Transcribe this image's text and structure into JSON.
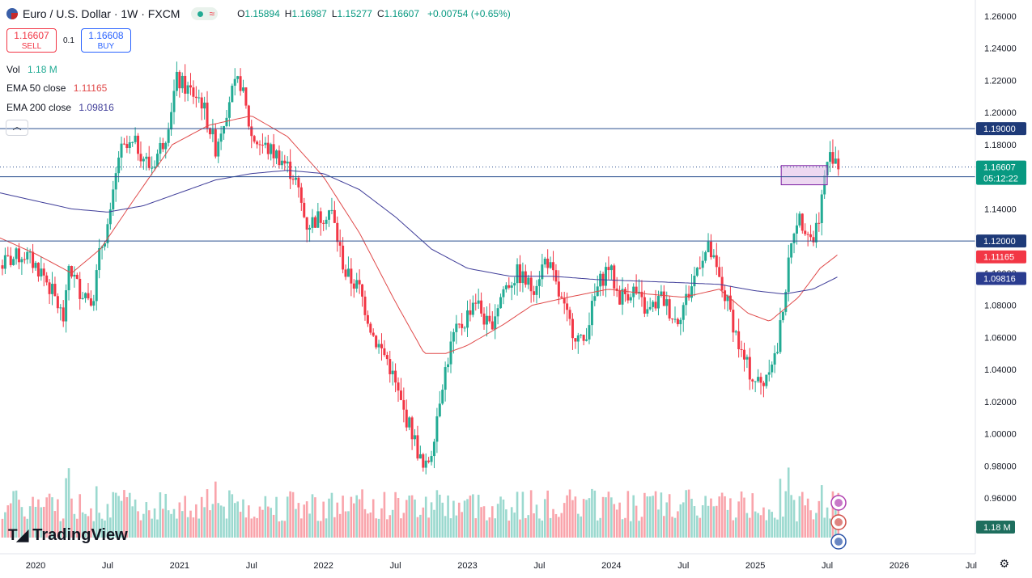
{
  "header": {
    "title": "Euro / U.S. Dollar · 1W · FXCM",
    "ohlc": [
      {
        "key": "O",
        "value": "1.15894"
      },
      {
        "key": "H",
        "value": "1.16987"
      },
      {
        "key": "L",
        "value": "1.15277"
      },
      {
        "key": "C",
        "value": "1.16607"
      },
      {
        "key": "",
        "value": "+0.00754 (+0.65%)"
      }
    ]
  },
  "trade": {
    "sell_price": "1.16607",
    "sell_label": "SELL",
    "spread": "0.1",
    "buy_price": "1.16608",
    "buy_label": "BUY"
  },
  "indicators": {
    "vol_label": "Vol",
    "vol_value": "1.18 M",
    "ema50_label": "EMA 50 close",
    "ema50_value": "1.11165",
    "ema200_label": "EMA 200 close",
    "ema200_value": "1.09816"
  },
  "logo": "TradingView",
  "colors": {
    "up": "#22ab94",
    "down": "#f23645",
    "ema50": "#e04a4a",
    "ema200": "#3f3d99",
    "hline": "#2a4f8f",
    "box_fill": "#e1bee7",
    "box_stroke": "#7b1fa2"
  },
  "chart_data": {
    "type": "candlestick",
    "symbol": "EUR/USD",
    "timeframe": "1W",
    "ylim": [
      0.945,
      1.265
    ],
    "y_ticks": [
      "1.26000",
      "1.24000",
      "1.22000",
      "1.20000",
      "1.18000",
      "1.16000",
      "1.14000",
      "1.12000",
      "1.10000",
      "1.08000",
      "1.06000",
      "1.04000",
      "1.02000",
      "1.00000",
      "0.98000",
      "0.96000"
    ],
    "x_ticks": [
      {
        "label": "2020",
        "t": 2020.0
      },
      {
        "label": "Jul",
        "t": 2020.5
      },
      {
        "label": "2021",
        "t": 2021.0
      },
      {
        "label": "Jul",
        "t": 2021.5
      },
      {
        "label": "2022",
        "t": 2022.0
      },
      {
        "label": "Jul",
        "t": 2022.5
      },
      {
        "label": "2023",
        "t": 2023.0
      },
      {
        "label": "Jul",
        "t": 2023.5
      },
      {
        "label": "2024",
        "t": 2024.0
      },
      {
        "label": "Jul",
        "t": 2024.5
      },
      {
        "label": "2025",
        "t": 2025.0
      },
      {
        "label": "Jul",
        "t": 2025.5
      },
      {
        "label": "2026",
        "t": 2026.0
      },
      {
        "label": "Jul",
        "t": 2026.5
      }
    ],
    "t_range": [
      2019.75,
      2026.88
    ],
    "price_path": [
      [
        2019.75,
        1.105
      ],
      [
        2019.92,
        1.112
      ],
      [
        2020.05,
        1.1
      ],
      [
        2020.13,
        1.085
      ],
      [
        2020.2,
        1.07
      ],
      [
        2020.23,
        1.105
      ],
      [
        2020.3,
        1.09
      ],
      [
        2020.4,
        1.085
      ],
      [
        2020.45,
        1.115
      ],
      [
        2020.52,
        1.135
      ],
      [
        2020.58,
        1.175
      ],
      [
        2020.7,
        1.18
      ],
      [
        2020.8,
        1.165
      ],
      [
        2020.9,
        1.185
      ],
      [
        2020.98,
        1.22
      ],
      [
        2021.05,
        1.215
      ],
      [
        2021.15,
        1.208
      ],
      [
        2021.25,
        1.178
      ],
      [
        2021.35,
        1.21
      ],
      [
        2021.42,
        1.22
      ],
      [
        2021.5,
        1.185
      ],
      [
        2021.6,
        1.178
      ],
      [
        2021.7,
        1.172
      ],
      [
        2021.8,
        1.16
      ],
      [
        2021.88,
        1.13
      ],
      [
        2021.98,
        1.135
      ],
      [
        2022.05,
        1.14
      ],
      [
        2022.15,
        1.1
      ],
      [
        2022.25,
        1.09
      ],
      [
        2022.35,
        1.06
      ],
      [
        2022.45,
        1.045
      ],
      [
        2022.55,
        1.015
      ],
      [
        2022.62,
        1.0
      ],
      [
        2022.7,
        0.975
      ],
      [
        2022.75,
        0.99
      ],
      [
        2022.82,
        1.03
      ],
      [
        2022.9,
        1.06
      ],
      [
        2022.98,
        1.07
      ],
      [
        2023.05,
        1.085
      ],
      [
        2023.15,
        1.065
      ],
      [
        2023.25,
        1.09
      ],
      [
        2023.35,
        1.1
      ],
      [
        2023.45,
        1.09
      ],
      [
        2023.55,
        1.11
      ],
      [
        2023.62,
        1.09
      ],
      [
        2023.7,
        1.07
      ],
      [
        2023.8,
        1.055
      ],
      [
        2023.9,
        1.09
      ],
      [
        2023.98,
        1.105
      ],
      [
        2024.05,
        1.085
      ],
      [
        2024.15,
        1.09
      ],
      [
        2024.25,
        1.075
      ],
      [
        2024.35,
        1.085
      ],
      [
        2024.45,
        1.07
      ],
      [
        2024.55,
        1.09
      ],
      [
        2024.62,
        1.11
      ],
      [
        2024.68,
        1.115
      ],
      [
        2024.75,
        1.095
      ],
      [
        2024.82,
        1.078
      ],
      [
        2024.9,
        1.05
      ],
      [
        2024.98,
        1.035
      ],
      [
        2025.05,
        1.03
      ],
      [
        2025.1,
        1.045
      ],
      [
        2025.15,
        1.05
      ],
      [
        2025.2,
        1.085
      ],
      [
        2025.28,
        1.135
      ],
      [
        2025.35,
        1.13
      ],
      [
        2025.4,
        1.12
      ],
      [
        2025.45,
        1.14
      ],
      [
        2025.5,
        1.17
      ],
      [
        2025.55,
        1.175
      ],
      [
        2025.58,
        1.166
      ]
    ],
    "ema50_path": [
      [
        2019.75,
        1.122
      ],
      [
        2020.0,
        1.112
      ],
      [
        2020.25,
        1.1
      ],
      [
        2020.45,
        1.115
      ],
      [
        2020.7,
        1.148
      ],
      [
        2020.95,
        1.18
      ],
      [
        2021.2,
        1.192
      ],
      [
        2021.5,
        1.198
      ],
      [
        2021.75,
        1.185
      ],
      [
        2022.0,
        1.16
      ],
      [
        2022.25,
        1.125
      ],
      [
        2022.5,
        1.082
      ],
      [
        2022.7,
        1.05
      ],
      [
        2022.85,
        1.05
      ],
      [
        2023.0,
        1.055
      ],
      [
        2023.25,
        1.068
      ],
      [
        2023.45,
        1.08
      ],
      [
        2023.7,
        1.085
      ],
      [
        2023.98,
        1.09
      ],
      [
        2024.25,
        1.087
      ],
      [
        2024.5,
        1.085
      ],
      [
        2024.75,
        1.09
      ],
      [
        2024.95,
        1.075
      ],
      [
        2025.1,
        1.07
      ],
      [
        2025.3,
        1.085
      ],
      [
        2025.45,
        1.103
      ],
      [
        2025.58,
        1.112
      ]
    ],
    "ema200_path": [
      [
        2019.75,
        1.15
      ],
      [
        2020.0,
        1.145
      ],
      [
        2020.25,
        1.14
      ],
      [
        2020.5,
        1.138
      ],
      [
        2020.75,
        1.142
      ],
      [
        2021.0,
        1.15
      ],
      [
        2021.25,
        1.158
      ],
      [
        2021.5,
        1.162
      ],
      [
        2021.75,
        1.164
      ],
      [
        2022.0,
        1.162
      ],
      [
        2022.25,
        1.152
      ],
      [
        2022.5,
        1.135
      ],
      [
        2022.75,
        1.115
      ],
      [
        2023.0,
        1.103
      ],
      [
        2023.3,
        1.098
      ],
      [
        2023.6,
        1.098
      ],
      [
        2023.9,
        1.096
      ],
      [
        2024.2,
        1.095
      ],
      [
        2024.5,
        1.094
      ],
      [
        2024.75,
        1.093
      ],
      [
        2025.0,
        1.089
      ],
      [
        2025.2,
        1.087
      ],
      [
        2025.4,
        1.09
      ],
      [
        2025.58,
        1.098
      ]
    ],
    "horizontal_lines": [
      {
        "value": 1.19,
        "label": "1.19000",
        "style": "solid"
      },
      {
        "value": 1.16,
        "label": "1.16000",
        "style": "solid"
      },
      {
        "value": 1.12,
        "label": "1.12000",
        "style": "solid"
      },
      {
        "value": 1.16607,
        "label": "1.16607",
        "style": "dotted",
        "countdown": "05:12:22"
      }
    ],
    "price_labels": [
      {
        "value": 1.11165,
        "label": "1.11165",
        "color": "#f23645"
      },
      {
        "value": 1.09816,
        "label": "1.09816",
        "color": "#2a3c8f"
      }
    ],
    "volume_label": "1.18 M",
    "zone": {
      "t0": 2025.18,
      "t1": 2025.5,
      "y0": 1.155,
      "y1": 1.167
    }
  }
}
